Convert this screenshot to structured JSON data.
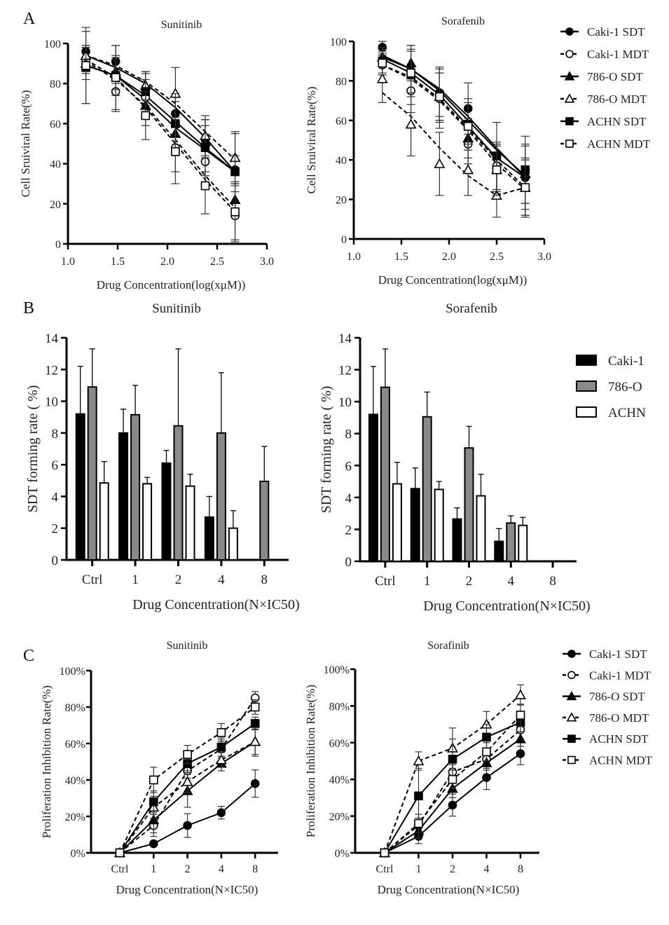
{
  "figure": {
    "panel_labels": [
      "A",
      "B",
      "C"
    ]
  },
  "chart_data": [
    {
      "id": "A-sunitinib",
      "panel": "A",
      "type": "line",
      "title": "Sunitinib",
      "xlabel": "Drug Concentration(log(xμM))",
      "ylabel": "Cell Sruiviral Rate(%)",
      "xlim": [
        1.0,
        3.0
      ],
      "ylim": [
        0,
        100
      ],
      "xticks": [
        "1.0",
        "1.5",
        "2.0",
        "2.5",
        "3.0"
      ],
      "yticks": [
        "0",
        "20",
        "40",
        "60",
        "80",
        "100"
      ],
      "x": [
        1.18,
        1.48,
        1.78,
        2.08,
        2.38,
        2.68
      ],
      "series": [
        {
          "name": "Caki-1 SDT",
          "marker": "circle",
          "filled": true,
          "dashed": false,
          "values": [
            96,
            91,
            77,
            65,
            52,
            37
          ],
          "err": [
            3,
            8,
            8,
            6,
            10,
            7
          ],
          "fit": [
            94,
            88,
            80,
            68,
            53,
            36
          ]
        },
        {
          "name": "Caki-1 MDT",
          "marker": "circle",
          "filled": false,
          "dashed": true,
          "values": [
            92,
            76,
            73,
            48,
            41,
            14
          ],
          "err": [
            7,
            10,
            9,
            12,
            5,
            12
          ],
          "fit": [
            91,
            82,
            69,
            52,
            34,
            18
          ]
        },
        {
          "name": "786-O SDT",
          "marker": "triangle",
          "filled": true,
          "dashed": false,
          "values": [
            90,
            86,
            69,
            55,
            51,
            22
          ],
          "err": [
            8,
            6,
            10,
            8,
            8,
            7
          ],
          "fit": [
            89,
            84,
            72,
            58,
            47,
            36
          ]
        },
        {
          "name": "786-O MDT",
          "marker": "triangle",
          "filled": false,
          "dashed": true,
          "values": [
            94,
            85,
            79,
            75,
            54,
            43
          ],
          "err": [
            4,
            8,
            7,
            13,
            10,
            13
          ],
          "fit": [
            94,
            89,
            81,
            70,
            56,
            42
          ]
        },
        {
          "name": "ACHN SDT",
          "marker": "square",
          "filled": true,
          "dashed": false,
          "values": [
            88,
            84,
            76,
            60,
            48,
            36
          ],
          "err": [
            18,
            10,
            10,
            15,
            14,
            19
          ],
          "fit": [
            89,
            84,
            74,
            61,
            48,
            36
          ]
        },
        {
          "name": "ACHN MDT",
          "marker": "square",
          "filled": false,
          "dashed": true,
          "values": [
            89,
            83,
            64,
            46,
            29,
            16
          ],
          "err": [
            19,
            16,
            12,
            16,
            14,
            15
          ],
          "fit": [
            92,
            83,
            68,
            50,
            32,
            16
          ]
        }
      ]
    },
    {
      "id": "A-sorafenib",
      "panel": "A",
      "type": "line",
      "title": "Sorafenib",
      "xlabel": "Drug Concentration(log(xμM))",
      "ylabel": "Cell Sruiviral Rate(%)",
      "xlim": [
        1.0,
        3.0
      ],
      "ylim": [
        0,
        100
      ],
      "xticks": [
        "1.0",
        "1.5",
        "2.0",
        "2.5",
        "3.0"
      ],
      "yticks": [
        "0",
        "20",
        "40",
        "60",
        "80",
        "100"
      ],
      "x": [
        1.3,
        1.6,
        1.9,
        2.2,
        2.5,
        2.8
      ],
      "legend": {
        "position": "right",
        "entries": [
          "Caki-1 SDT",
          "Caki-1 MDT",
          "786-O SDT",
          "786-O MDT",
          "ACHN SDT",
          "ACHN MDT"
        ]
      },
      "series": [
        {
          "name": "Caki-1 SDT",
          "marker": "circle",
          "filled": true,
          "dashed": false,
          "values": [
            97,
            85,
            74,
            66,
            36,
            31
          ],
          "err": [
            3,
            10,
            12,
            13,
            12,
            16
          ],
          "fit": [
            93,
            86,
            76,
            62,
            46,
            31
          ]
        },
        {
          "name": "Caki-1 MDT",
          "marker": "circle",
          "filled": false,
          "dashed": true,
          "values": [
            88,
            75,
            71,
            48,
            37,
            26
          ],
          "err": [
            5,
            11,
            15,
            10,
            12,
            14
          ],
          "fit": [
            88,
            82,
            71,
            56,
            40,
            26
          ]
        },
        {
          "name": "786-O SDT",
          "marker": "triangle",
          "filled": true,
          "dashed": false,
          "values": [
            92,
            89,
            72,
            51,
            35,
            33
          ],
          "err": [
            5,
            9,
            12,
            10,
            12,
            15
          ],
          "fit": [
            91,
            84,
            73,
            57,
            41,
            31
          ]
        },
        {
          "name": "786-O MDT",
          "marker": "triangle",
          "filled": false,
          "dashed": true,
          "values": [
            81,
            58,
            38,
            35,
            22,
            26
          ],
          "err": [
            12,
            16,
            16,
            13,
            11,
            14
          ],
          "fit": [
            74,
            62,
            46,
            32,
            22,
            26
          ]
        },
        {
          "name": "ACHN SDT",
          "marker": "square",
          "filled": true,
          "dashed": false,
          "values": [
            90,
            83,
            73,
            58,
            42,
            35
          ],
          "err": [
            6,
            15,
            14,
            13,
            17,
            17
          ],
          "fit": [
            92,
            86,
            75,
            60,
            45,
            32
          ]
        },
        {
          "name": "ACHN MDT",
          "marker": "square",
          "filled": false,
          "dashed": true,
          "values": [
            89,
            84,
            72,
            57,
            35,
            26
          ],
          "err": [
            6,
            12,
            12,
            12,
            13,
            15
          ],
          "fit": [
            88,
            81,
            70,
            55,
            38,
            25
          ]
        }
      ]
    },
    {
      "id": "B-sunitinib",
      "panel": "B",
      "type": "bar",
      "title": "Sunitinib",
      "xlabel": "Drug Concentration(N×IC50)",
      "ylabel": "SDT forming rate ( %)",
      "categories": [
        "Ctrl",
        "1",
        "2",
        "4",
        "8"
      ],
      "ylim": [
        0,
        14
      ],
      "yticks": [
        "0",
        "2",
        "4",
        "6",
        "8",
        "10",
        "12",
        "14"
      ],
      "series": [
        {
          "name": "Caki-1",
          "color": "#000000",
          "values": [
            9.2,
            8.0,
            6.1,
            2.7,
            0
          ],
          "err": [
            3.0,
            1.5,
            0.8,
            1.3,
            0
          ]
        },
        {
          "name": "786-O",
          "color": "#8a8a8a",
          "values": [
            10.9,
            9.15,
            8.45,
            8.0,
            4.95
          ],
          "err": [
            2.4,
            1.85,
            4.85,
            3.8,
            2.2
          ]
        },
        {
          "name": "ACHN",
          "color": "#ffffff",
          "values": [
            4.85,
            4.8,
            4.65,
            2.0,
            0
          ],
          "err": [
            1.35,
            0.4,
            0.75,
            1.1,
            0
          ]
        }
      ]
    },
    {
      "id": "B-sorafenib",
      "panel": "B",
      "type": "bar",
      "title": "Sorafenib",
      "xlabel": "Drug Concentration(N×IC50)",
      "ylabel": "SDT forming rate ( %)",
      "categories": [
        "Ctrl",
        "1",
        "2",
        "4",
        "8"
      ],
      "ylim": [
        0,
        14
      ],
      "yticks": [
        "0",
        "2",
        "4",
        "6",
        "8",
        "10",
        "12",
        "14"
      ],
      "legend": {
        "position": "right",
        "entries": [
          "Caki-1",
          "786-O",
          "ACHN"
        ]
      },
      "series": [
        {
          "name": "Caki-1",
          "color": "#000000",
          "values": [
            9.2,
            4.55,
            2.65,
            1.25,
            0
          ],
          "err": [
            3.0,
            1.3,
            0.7,
            0.8,
            0
          ]
        },
        {
          "name": "786-O",
          "color": "#8a8a8a",
          "values": [
            10.9,
            9.05,
            7.1,
            2.4,
            0
          ],
          "err": [
            2.4,
            1.55,
            1.35,
            0.45,
            0
          ]
        },
        {
          "name": "ACHN",
          "color": "#ffffff",
          "values": [
            4.85,
            4.5,
            4.1,
            2.25,
            0
          ],
          "err": [
            1.35,
            0.5,
            1.35,
            0.5,
            0
          ]
        }
      ]
    },
    {
      "id": "C-sunitinib",
      "panel": "C",
      "type": "line",
      "title": "Sunitinib",
      "xlabel": "Drug Concentration(N×IC50)",
      "ylabel": "Proliferation Inhibition Rate(%)",
      "categories": [
        "Ctrl",
        "1",
        "2",
        "4",
        "8"
      ],
      "ylim": [
        0,
        100
      ],
      "yticks": [
        "0%",
        "20%",
        "40%",
        "60%",
        "80%",
        "100%"
      ],
      "series": [
        {
          "name": "Caki-1 SDT",
          "marker": "circle",
          "filled": true,
          "dashed": false,
          "values": [
            0,
            5,
            15,
            22,
            38
          ],
          "err": [
            0,
            0,
            6.5,
            3.5,
            7.5
          ]
        },
        {
          "name": "Caki-1 MDT",
          "marker": "circle",
          "filled": false,
          "dashed": true,
          "values": [
            0,
            15,
            45,
            57,
            85
          ],
          "err": [
            0,
            6,
            4,
            5,
            3.5
          ]
        },
        {
          "name": "786-O SDT",
          "marker": "triangle",
          "filled": true,
          "dashed": false,
          "values": [
            0,
            18,
            34,
            49,
            61
          ],
          "err": [
            0,
            7,
            9,
            4,
            8
          ]
        },
        {
          "name": "786-O MDT",
          "marker": "triangle",
          "filled": false,
          "dashed": true,
          "values": [
            0,
            25,
            39,
            51,
            61
          ],
          "err": [
            0,
            6,
            6,
            4,
            7
          ]
        },
        {
          "name": "ACHN SDT",
          "marker": "square",
          "filled": true,
          "dashed": false,
          "values": [
            0,
            28,
            49,
            58,
            71
          ],
          "err": [
            0,
            6,
            5,
            5,
            3.5
          ]
        },
        {
          "name": "ACHN MDT",
          "marker": "square",
          "filled": false,
          "dashed": true,
          "values": [
            0,
            40,
            54,
            66,
            80
          ],
          "err": [
            0,
            7,
            5,
            5,
            4
          ]
        }
      ]
    },
    {
      "id": "C-sorafinib",
      "panel": "C",
      "type": "line",
      "title": "Sorafinib",
      "xlabel": "Drug Concentration(N×IC50)",
      "ylabel": "Proliferation Inhibition Rate(%)",
      "categories": [
        "Ctrl",
        "1",
        "2",
        "4",
        "8"
      ],
      "ylim": [
        0,
        100
      ],
      "yticks": [
        "0%",
        "20%",
        "40%",
        "60%",
        "80%",
        "100%"
      ],
      "legend": {
        "position": "right",
        "entries": [
          "Caki-1 SDT",
          "Caki-1 MDT",
          "786-O SDT",
          "786-O MDT",
          "ACHN SDT",
          "ACHN MDT"
        ]
      },
      "series": [
        {
          "name": "Caki-1 SDT",
          "marker": "circle",
          "filled": true,
          "dashed": false,
          "values": [
            0,
            9,
            26,
            41,
            54
          ],
          "err": [
            0,
            4,
            6,
            6.5,
            6
          ]
        },
        {
          "name": "Caki-1 MDT",
          "marker": "circle",
          "filled": false,
          "dashed": true,
          "values": [
            0,
            15,
            44,
            51,
            67
          ],
          "err": [
            0,
            4,
            4,
            5,
            5
          ]
        },
        {
          "name": "786-O SDT",
          "marker": "triangle",
          "filled": true,
          "dashed": false,
          "values": [
            0,
            12,
            35,
            49,
            62
          ],
          "err": [
            0,
            4,
            5,
            4,
            4
          ]
        },
        {
          "name": "786-O MDT",
          "marker": "triangle",
          "filled": false,
          "dashed": true,
          "values": [
            0,
            50,
            57,
            70,
            86
          ],
          "err": [
            0,
            5,
            11,
            7,
            5.5
          ]
        },
        {
          "name": "ACHN SDT",
          "marker": "square",
          "filled": true,
          "dashed": false,
          "values": [
            0,
            31,
            51,
            63,
            71
          ],
          "err": [
            0,
            15,
            11,
            7,
            5
          ]
        },
        {
          "name": "ACHN MDT",
          "marker": "square",
          "filled": false,
          "dashed": true,
          "values": [
            0,
            16,
            40,
            55,
            75
          ],
          "err": [
            0,
            5,
            5,
            5,
            6
          ]
        }
      ]
    }
  ]
}
